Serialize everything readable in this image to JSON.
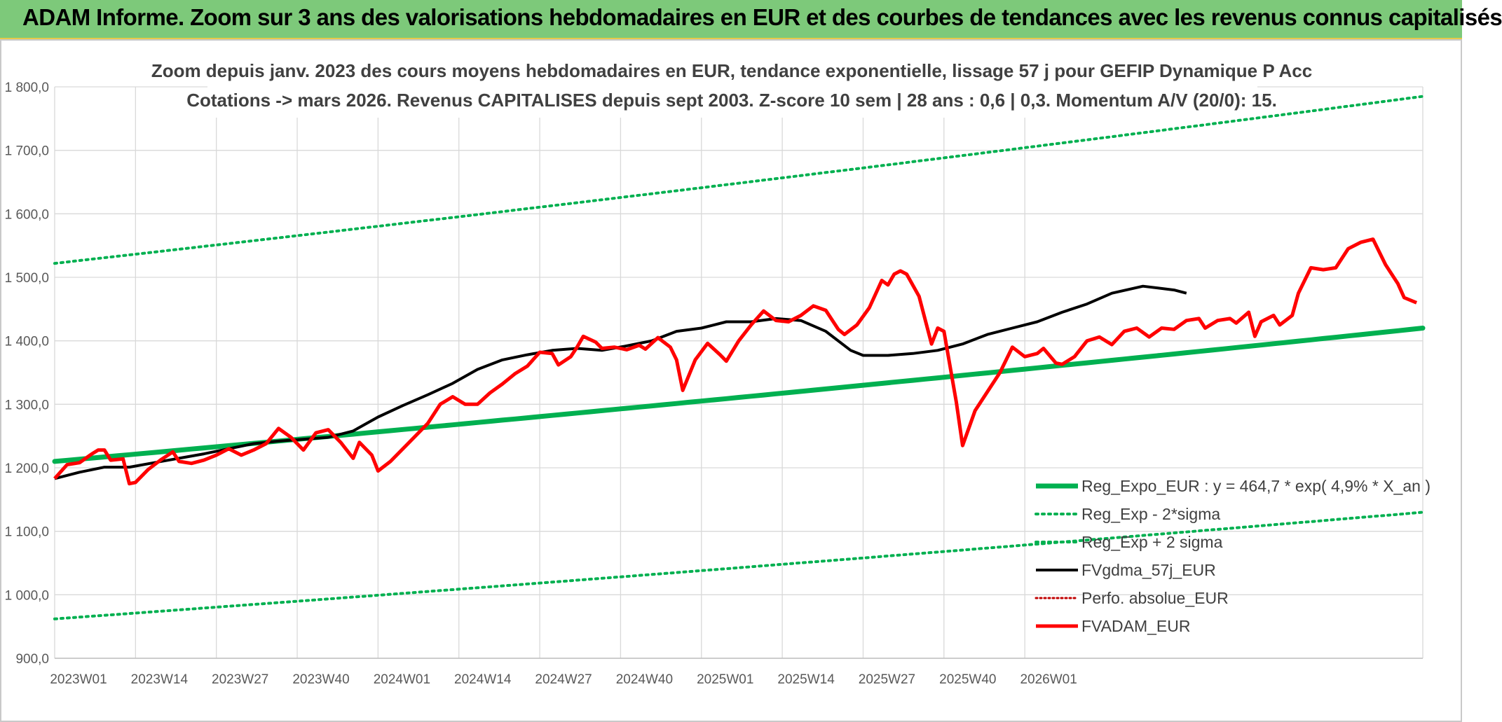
{
  "header": {
    "title": "ADAM Informe. Zoom sur 3 ans des valorisations hebdomadaires en EUR et des courbes de tendances avec les revenus connus capitalisés"
  },
  "chart_data": {
    "type": "line",
    "subtitle_line1": "Zoom depuis janv. 2023 des cours moyens hebdomadaires en EUR, tendance exponentielle, lissage 57 j pour GEFIP Dynamique P Acc",
    "subtitle_line2": "Cotations -> mars 2026. Revenus CAPITALISES depuis sept 2003. Z-score 10 sem | 28 ans : 0,6 | 0,3. Momentum A/V (20/0): 15.",
    "ylim": [
      900,
      1800
    ],
    "y_ticks": [
      "900,0",
      "1 000,0",
      "1 100,0",
      "1 200,0",
      "1 300,0",
      "1 400,0",
      "1 500,0",
      "1 600,0",
      "1 700,0",
      "1 800,0"
    ],
    "x_ticks": [
      "2023W01",
      "2023W14",
      "2023W27",
      "2023W40",
      "2024W01",
      "2024W14",
      "2024W27",
      "2024W40",
      "2025W01",
      "2025W14",
      "2025W27",
      "2025W40",
      "2026W01"
    ],
    "weeks_total": 170,
    "colors": {
      "reg": "#00b050",
      "fvgdma": "#000000",
      "fvadam": "#ff0000",
      "perfo": "#c00000",
      "grid": "#d9d9d9"
    },
    "series": [
      {
        "name": "Reg_Expo_EUR : y = 464,7 * exp( 4,9% *  X_an )",
        "style": "solid-green",
        "start": 1210,
        "end": 1420
      },
      {
        "name": "Reg_Exp - 2*sigma",
        "style": "dotted-green",
        "start": 962,
        "end": 1130
      },
      {
        "name": "Reg_Exp + 2 sigma",
        "style": "dotted-green",
        "start": 1522,
        "end": 1785
      },
      {
        "name": "FVgdma_57j_EUR",
        "style": "solid-black",
        "points": [
          [
            0,
            1183
          ],
          [
            4,
            1193
          ],
          [
            8,
            1201
          ],
          [
            12,
            1201
          ],
          [
            16,
            1208
          ],
          [
            20,
            1215
          ],
          [
            24,
            1222
          ],
          [
            28,
            1230
          ],
          [
            32,
            1238
          ],
          [
            36,
            1242
          ],
          [
            40,
            1245
          ],
          [
            44,
            1248
          ],
          [
            48,
            1258
          ],
          [
            52,
            1280
          ],
          [
            56,
            1298
          ],
          [
            60,
            1315
          ],
          [
            64,
            1333
          ],
          [
            68,
            1355
          ],
          [
            72,
            1370
          ],
          [
            76,
            1378
          ],
          [
            80,
            1385
          ],
          [
            84,
            1388
          ],
          [
            88,
            1385
          ],
          [
            92,
            1392
          ],
          [
            96,
            1400
          ],
          [
            100,
            1415
          ],
          [
            104,
            1420
          ],
          [
            108,
            1430
          ],
          [
            112,
            1430
          ],
          [
            116,
            1435
          ],
          [
            120,
            1432
          ],
          [
            124,
            1415
          ],
          [
            128,
            1385
          ],
          [
            130,
            1377
          ],
          [
            134,
            1377
          ],
          [
            138,
            1380
          ],
          [
            142,
            1385
          ],
          [
            146,
            1395
          ],
          [
            150,
            1410
          ],
          [
            154,
            1420
          ],
          [
            158,
            1430
          ],
          [
            162,
            1445
          ],
          [
            166,
            1458
          ],
          [
            170,
            1475
          ],
          [
            175,
            1486
          ],
          [
            180,
            1480
          ],
          [
            182,
            1475
          ]
        ]
      },
      {
        "name": "Perfo. absolue_EUR",
        "style": "dotted-red"
      },
      {
        "name": "FVADAM_EUR",
        "style": "solid-red",
        "points": [
          [
            0,
            1183
          ],
          [
            2,
            1205
          ],
          [
            4,
            1208
          ],
          [
            6,
            1222
          ],
          [
            7,
            1228
          ],
          [
            8,
            1228
          ],
          [
            9,
            1212
          ],
          [
            11,
            1214
          ],
          [
            12,
            1175
          ],
          [
            13,
            1177
          ],
          [
            15,
            1197
          ],
          [
            17,
            1212
          ],
          [
            19,
            1225
          ],
          [
            20,
            1210
          ],
          [
            22,
            1207
          ],
          [
            24,
            1212
          ],
          [
            26,
            1220
          ],
          [
            28,
            1230
          ],
          [
            30,
            1220
          ],
          [
            32,
            1228
          ],
          [
            34,
            1238
          ],
          [
            36,
            1262
          ],
          [
            38,
            1248
          ],
          [
            40,
            1228
          ],
          [
            42,
            1255
          ],
          [
            44,
            1260
          ],
          [
            46,
            1240
          ],
          [
            48,
            1215
          ],
          [
            49,
            1240
          ],
          [
            51,
            1220
          ],
          [
            52,
            1195
          ],
          [
            54,
            1210
          ],
          [
            56,
            1230
          ],
          [
            58,
            1250
          ],
          [
            60,
            1270
          ],
          [
            62,
            1300
          ],
          [
            64,
            1312
          ],
          [
            66,
            1300
          ],
          [
            68,
            1300
          ],
          [
            70,
            1318
          ],
          [
            72,
            1332
          ],
          [
            74,
            1348
          ],
          [
            76,
            1360
          ],
          [
            78,
            1382
          ],
          [
            80,
            1380
          ],
          [
            81,
            1362
          ],
          [
            83,
            1375
          ],
          [
            84,
            1390
          ],
          [
            85,
            1407
          ],
          [
            87,
            1398
          ],
          [
            88,
            1388
          ],
          [
            90,
            1390
          ],
          [
            92,
            1386
          ],
          [
            94,
            1393
          ],
          [
            95,
            1387
          ],
          [
            97,
            1405
          ],
          [
            99,
            1390
          ],
          [
            100,
            1370
          ],
          [
            101,
            1322
          ],
          [
            103,
            1370
          ],
          [
            105,
            1396
          ],
          [
            107,
            1378
          ],
          [
            108,
            1368
          ],
          [
            110,
            1400
          ],
          [
            112,
            1425
          ],
          [
            114,
            1447
          ],
          [
            116,
            1432
          ],
          [
            118,
            1430
          ],
          [
            120,
            1440
          ],
          [
            122,
            1455
          ],
          [
            124,
            1448
          ],
          [
            126,
            1418
          ],
          [
            127,
            1410
          ],
          [
            129,
            1425
          ],
          [
            131,
            1452
          ],
          [
            133,
            1495
          ],
          [
            134,
            1488
          ],
          [
            135,
            1505
          ],
          [
            136,
            1510
          ],
          [
            137,
            1505
          ],
          [
            139,
            1470
          ],
          [
            141,
            1395
          ],
          [
            142,
            1420
          ],
          [
            143,
            1415
          ],
          [
            145,
            1303
          ],
          [
            146,
            1235
          ],
          [
            148,
            1290
          ],
          [
            150,
            1320
          ],
          [
            152,
            1350
          ],
          [
            154,
            1390
          ],
          [
            156,
            1375
          ],
          [
            158,
            1380
          ],
          [
            159,
            1388
          ],
          [
            161,
            1365
          ],
          [
            162,
            1363
          ],
          [
            164,
            1375
          ],
          [
            166,
            1400
          ],
          [
            168,
            1406
          ],
          [
            170,
            1394
          ],
          [
            172,
            1415
          ],
          [
            174,
            1420
          ],
          [
            176,
            1406
          ],
          [
            178,
            1420
          ],
          [
            180,
            1418
          ],
          [
            182,
            1432
          ],
          [
            184,
            1435
          ],
          [
            185,
            1420
          ],
          [
            187,
            1432
          ],
          [
            189,
            1435
          ],
          [
            190,
            1428
          ],
          [
            192,
            1445
          ],
          [
            193,
            1407
          ],
          [
            194,
            1430
          ],
          [
            196,
            1440
          ],
          [
            197,
            1425
          ],
          [
            199,
            1440
          ],
          [
            200,
            1475
          ],
          [
            202,
            1515
          ],
          [
            204,
            1512
          ],
          [
            206,
            1515
          ],
          [
            208,
            1545
          ],
          [
            210,
            1555
          ],
          [
            212,
            1560
          ],
          [
            214,
            1520
          ],
          [
            216,
            1490
          ],
          [
            217,
            1468
          ],
          [
            219,
            1460
          ]
        ]
      }
    ]
  }
}
